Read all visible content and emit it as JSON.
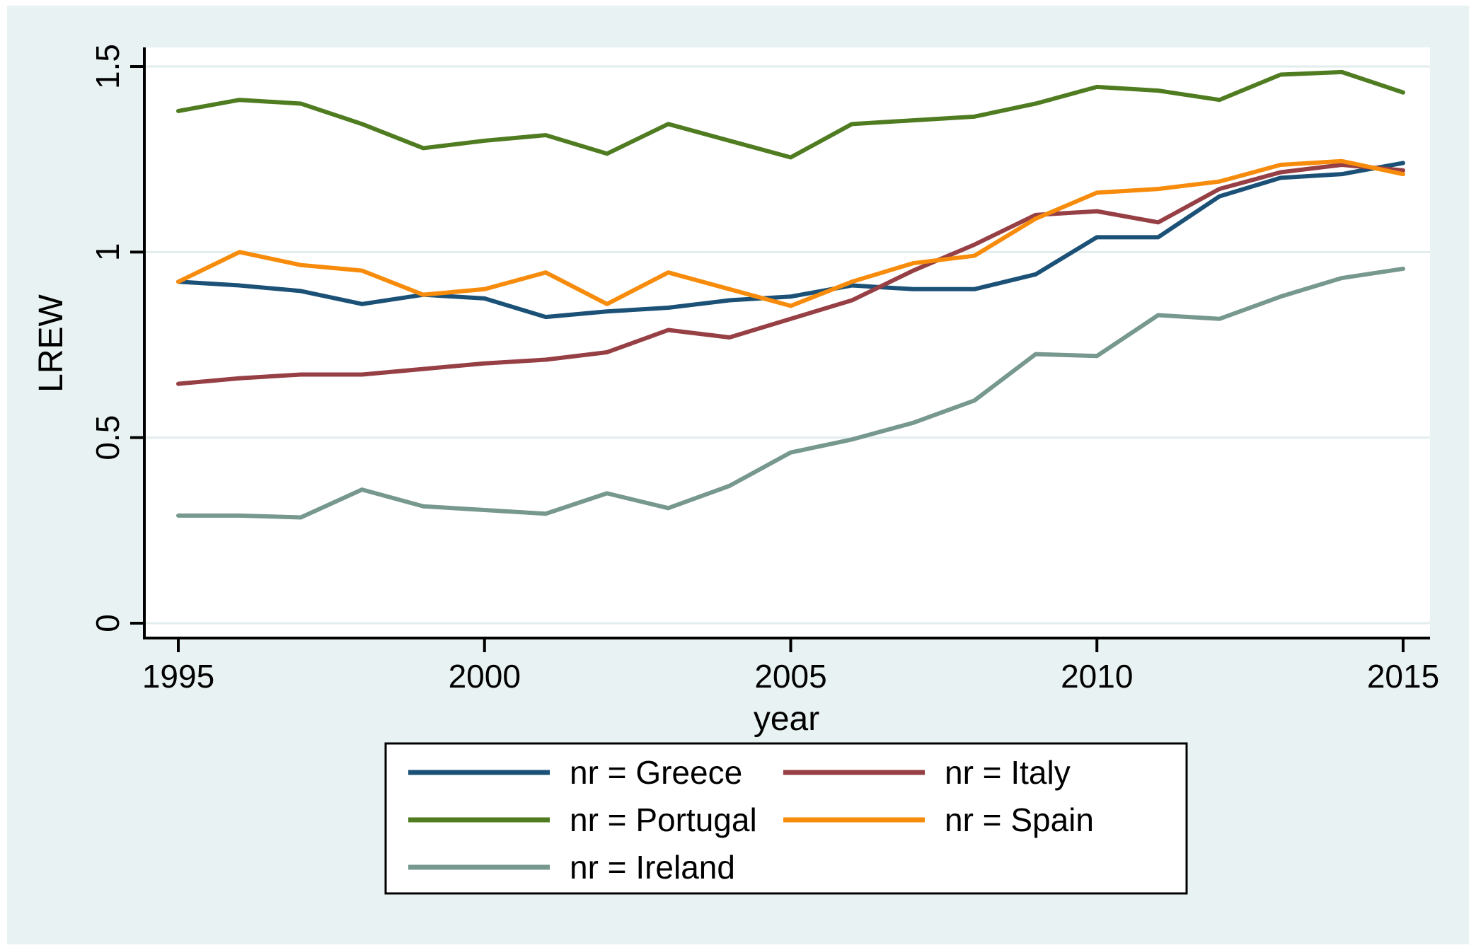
{
  "chart_data": {
    "type": "line",
    "title": "",
    "xlabel": "year",
    "ylabel": "LREW",
    "x": [
      1995,
      1996,
      1997,
      1998,
      1999,
      2000,
      2001,
      2002,
      2003,
      2004,
      2005,
      2006,
      2007,
      2008,
      2009,
      2010,
      2011,
      2012,
      2013,
      2014,
      2015
    ],
    "x_ticks": [
      1995,
      2000,
      2005,
      2010,
      2015
    ],
    "x_tick_labels": [
      "1995",
      "2000",
      "2005",
      "2010",
      "2015"
    ],
    "y_ticks": [
      0,
      0.5,
      1,
      1.5
    ],
    "y_tick_labels": [
      "0",
      "0.5",
      "1",
      "1.5"
    ],
    "xlim": [
      1994.42,
      2015.44
    ],
    "ylim": [
      -0.044,
      1.552
    ],
    "grid": true,
    "legend_position": "bottom",
    "series": [
      {
        "name": "nr = Greece",
        "color": "#1b5177",
        "values": [
          0.92,
          0.91,
          0.895,
          0.86,
          0.885,
          0.875,
          0.825,
          0.84,
          0.85,
          0.87,
          0.88,
          0.91,
          0.9,
          0.9,
          0.94,
          1.04,
          1.04,
          1.15,
          1.2,
          1.21,
          1.24
        ]
      },
      {
        "name": "nr = Italy",
        "color": "#963f44",
        "values": [
          0.645,
          0.66,
          0.67,
          0.67,
          0.685,
          0.7,
          0.71,
          0.73,
          0.79,
          0.77,
          0.82,
          0.87,
          0.95,
          1.02,
          1.1,
          1.11,
          1.08,
          1.17,
          1.215,
          1.235,
          1.22
        ]
      },
      {
        "name": "nr = Portugal",
        "color": "#4f7c21",
        "values": [
          1.38,
          1.41,
          1.4,
          1.345,
          1.28,
          1.3,
          1.315,
          1.265,
          1.345,
          1.3,
          1.255,
          1.345,
          1.355,
          1.365,
          1.4,
          1.445,
          1.435,
          1.41,
          1.478,
          1.485,
          1.43
        ]
      },
      {
        "name": "nr = Spain",
        "color": "#f78c0c",
        "values": [
          0.92,
          1.0,
          0.965,
          0.95,
          0.885,
          0.9,
          0.945,
          0.86,
          0.945,
          0.9,
          0.855,
          0.92,
          0.97,
          0.99,
          1.09,
          1.16,
          1.17,
          1.19,
          1.235,
          1.245,
          1.21
        ]
      },
      {
        "name": "nr = Ireland",
        "color": "#76988e",
        "values": [
          0.29,
          0.29,
          0.285,
          0.36,
          0.315,
          0.305,
          0.295,
          0.35,
          0.31,
          0.37,
          0.46,
          0.495,
          0.54,
          0.6,
          0.725,
          0.72,
          0.83,
          0.82,
          0.88,
          0.93,
          0.955
        ]
      }
    ],
    "legend_columns": 2
  },
  "colors": {
    "page_background": "#ffffff",
    "graph_background": "#e9f2f2",
    "plot_background": "#ffffff",
    "gridline": "#e2edee",
    "axis": "#000000",
    "text": "#000000",
    "legend_background": "#ffffff",
    "legend_border": "#000000"
  }
}
